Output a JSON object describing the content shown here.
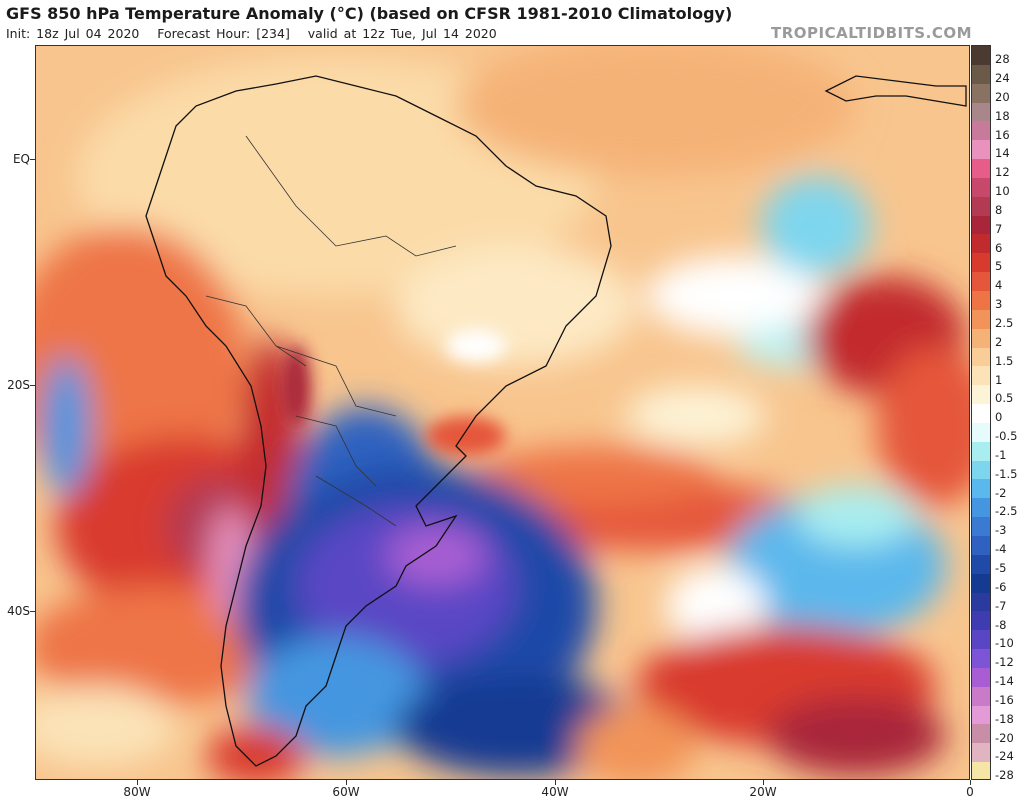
{
  "header": {
    "title": "GFS 850 hPa Temperature Anomaly (°C) (based on CFSR 1981-2010 Climatology)",
    "init": "Init: 18z Jul 04 2020",
    "forecast_hour": "Forecast Hour: [234]",
    "valid": "valid at 12z Tue, Jul 14 2020",
    "credit": "TROPICALTIDBITS.COM"
  },
  "axes": {
    "lat_labels": [
      "EQ",
      "20S",
      "40S"
    ],
    "lon_labels": [
      "80W",
      "60W",
      "40W",
      "20W",
      "0"
    ]
  },
  "colorbar": {
    "levels": [
      {
        "label": "28",
        "color": "#4a3a30"
      },
      {
        "label": "24",
        "color": "#6b5a48"
      },
      {
        "label": "20",
        "color": "#8a7262"
      },
      {
        "label": "18",
        "color": "#a8868a"
      },
      {
        "label": "16",
        "color": "#c77a9a"
      },
      {
        "label": "14",
        "color": "#e892bd"
      },
      {
        "label": "12",
        "color": "#e75d8a"
      },
      {
        "label": "10",
        "color": "#c7486a"
      },
      {
        "label": "8",
        "color": "#b23a52"
      },
      {
        "label": "7",
        "color": "#a9263a"
      },
      {
        "label": "6",
        "color": "#c22b2e"
      },
      {
        "label": "5",
        "color": "#d93a2e"
      },
      {
        "label": "4",
        "color": "#e5563a"
      },
      {
        "label": "3",
        "color": "#ee7446"
      },
      {
        "label": "2.5",
        "color": "#f29459"
      },
      {
        "label": "2",
        "color": "#f5b277"
      },
      {
        "label": "1.5",
        "color": "#f8cd97"
      },
      {
        "label": "1",
        "color": "#fbe3b7"
      },
      {
        "label": "0.5",
        "color": "#fdf3d6"
      },
      {
        "label": "0",
        "color": "#ffffff"
      },
      {
        "label": "-0.5",
        "color": "#e6fbfb"
      },
      {
        "label": "-1",
        "color": "#a8eef0"
      },
      {
        "label": "-1.5",
        "color": "#7ed6ee"
      },
      {
        "label": "-2",
        "color": "#5bb8ec"
      },
      {
        "label": "-2.5",
        "color": "#4496e0"
      },
      {
        "label": "-3",
        "color": "#3a7ad2"
      },
      {
        "label": "-4",
        "color": "#2f62c0"
      },
      {
        "label": "-5",
        "color": "#1f4aa8"
      },
      {
        "label": "-6",
        "color": "#143a92"
      },
      {
        "label": "-7",
        "color": "#2a3a9e"
      },
      {
        "label": "-8",
        "color": "#3e3cb0"
      },
      {
        "label": "-10",
        "color": "#5a46c4"
      },
      {
        "label": "-12",
        "color": "#7e54d6"
      },
      {
        "label": "-14",
        "color": "#a85ed2"
      },
      {
        "label": "-16",
        "color": "#c97ac8"
      },
      {
        "label": "-18",
        "color": "#e39ad6"
      },
      {
        "label": "-20",
        "color": "#c88ea8"
      },
      {
        "label": "-24",
        "color": "#e0b4c0"
      },
      {
        "label": "-28",
        "color": "#f5e6a8"
      }
    ]
  }
}
